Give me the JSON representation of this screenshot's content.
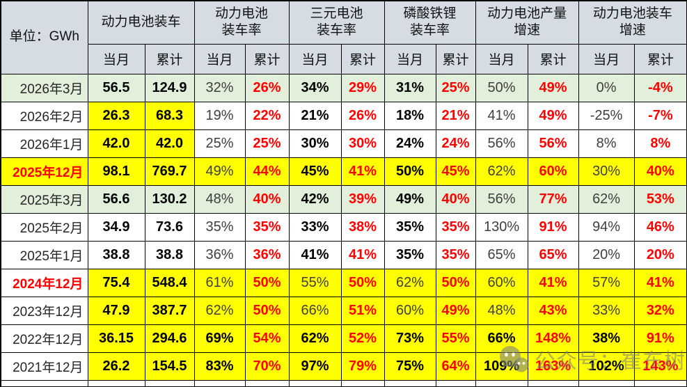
{
  "colors": {
    "highlight_yellow": "#FFFF00",
    "row_green": "#E2EFDA",
    "header_blue": "#D6DCE4",
    "cumulative_red": "#FF0000"
  },
  "watermark": {
    "text": "公众号：崔东树",
    "icon": "wechat-icon"
  },
  "chart_data": {
    "type": "table",
    "unit_label": "单位：GWh",
    "groups": [
      {
        "label": "动力电池装车"
      },
      {
        "label": "动力电池\n装车率"
      },
      {
        "label": "三元电池\n装车率"
      },
      {
        "label": "磷酸铁锂\n装车率"
      },
      {
        "label": "动力电池产量\n增速"
      },
      {
        "label": "动力电池装车\n增速"
      }
    ],
    "sub": {
      "current": "当月",
      "cumulative": "累计"
    },
    "rows": [
      {
        "label": "2026年3月",
        "label_bg": "green",
        "label_red": false,
        "bg": "green",
        "cells": [
          [
            "56.5",
            "b"
          ],
          [
            "124.9",
            "b"
          ],
          [
            "32%",
            "r"
          ],
          [
            "26%",
            "red"
          ],
          [
            "34%",
            "b"
          ],
          [
            "29%",
            "red"
          ],
          [
            "31%",
            "b"
          ],
          [
            "25%",
            "red"
          ],
          [
            "50%",
            "r"
          ],
          [
            "49%",
            "red"
          ],
          [
            "0%",
            "r"
          ],
          [
            "-4%",
            "red"
          ]
        ]
      },
      {
        "label": "2026年2月",
        "label_bg": "white",
        "label_red": false,
        "bg": "white",
        "cells": [
          [
            "26.3",
            "b",
            "y"
          ],
          [
            "68.3",
            "b",
            "y"
          ],
          [
            "19%",
            "r"
          ],
          [
            "22%",
            "red"
          ],
          [
            "21%",
            "b"
          ],
          [
            "26%",
            "red"
          ],
          [
            "18%",
            "b"
          ],
          [
            "21%",
            "red"
          ],
          [
            "41%",
            "r"
          ],
          [
            "49%",
            "red"
          ],
          [
            "-25%",
            "r"
          ],
          [
            "-7%",
            "red"
          ]
        ]
      },
      {
        "label": "2026年1月",
        "label_bg": "white",
        "label_red": false,
        "bg": "white",
        "cells": [
          [
            "42.0",
            "b",
            "y"
          ],
          [
            "42.0",
            "b",
            "y"
          ],
          [
            "25%",
            "r"
          ],
          [
            "25%",
            "red"
          ],
          [
            "30%",
            "b"
          ],
          [
            "30%",
            "red"
          ],
          [
            "24%",
            "b"
          ],
          [
            "24%",
            "red"
          ],
          [
            "56%",
            "r"
          ],
          [
            "56%",
            "red"
          ],
          [
            "8%",
            "r"
          ],
          [
            "8%",
            "red"
          ]
        ]
      },
      {
        "label": "2025年12月",
        "label_bg": "yellow",
        "label_red": true,
        "bg": "yellow",
        "cells": [
          [
            "98.1",
            "b"
          ],
          [
            "769.7",
            "b"
          ],
          [
            "49%",
            "r"
          ],
          [
            "44%",
            "red"
          ],
          [
            "45%",
            "b"
          ],
          [
            "41%",
            "red"
          ],
          [
            "50%",
            "b"
          ],
          [
            "45%",
            "red"
          ],
          [
            "62%",
            "r"
          ],
          [
            "60%",
            "red"
          ],
          [
            "30%",
            "r"
          ],
          [
            "40%",
            "red"
          ]
        ]
      },
      {
        "label": "2025年3月",
        "label_bg": "green",
        "label_red": false,
        "bg": "green",
        "cells": [
          [
            "56.6",
            "b"
          ],
          [
            "130.2",
            "b"
          ],
          [
            "48%",
            "r"
          ],
          [
            "40%",
            "red"
          ],
          [
            "42%",
            "b"
          ],
          [
            "39%",
            "red"
          ],
          [
            "49%",
            "b"
          ],
          [
            "40%",
            "red"
          ],
          [
            "56%",
            "r"
          ],
          [
            "77%",
            "red"
          ],
          [
            "62%",
            "r"
          ],
          [
            "53%",
            "red"
          ]
        ]
      },
      {
        "label": "2025年2月",
        "label_bg": "white",
        "label_red": false,
        "bg": "white",
        "cells": [
          [
            "34.9",
            "b"
          ],
          [
            "73.6",
            "b"
          ],
          [
            "35%",
            "r"
          ],
          [
            "35%",
            "red"
          ],
          [
            "33%",
            "b"
          ],
          [
            "38%",
            "red"
          ],
          [
            "35%",
            "b"
          ],
          [
            "35%",
            "red"
          ],
          [
            "130%",
            "r"
          ],
          [
            "91%",
            "red"
          ],
          [
            "94%",
            "r"
          ],
          [
            "46%",
            "red"
          ]
        ]
      },
      {
        "label": "2025年1月",
        "label_bg": "white",
        "label_red": false,
        "bg": "white",
        "cells": [
          [
            "38.8",
            "b"
          ],
          [
            "38.8",
            "b"
          ],
          [
            "36%",
            "r"
          ],
          [
            "36%",
            "red"
          ],
          [
            "41%",
            "b"
          ],
          [
            "41%",
            "red"
          ],
          [
            "35%",
            "b"
          ],
          [
            "35%",
            "red"
          ],
          [
            "65%",
            "r"
          ],
          [
            "65%",
            "red"
          ],
          [
            "20%",
            "r"
          ],
          [
            "20%",
            "red"
          ]
        ]
      },
      {
        "label": "2024年12月",
        "label_bg": "white",
        "label_red": true,
        "bg": "yellow",
        "cells": [
          [
            "75.4",
            "b"
          ],
          [
            "548.4",
            "b"
          ],
          [
            "61%",
            "r"
          ],
          [
            "50%",
            "red"
          ],
          [
            "55%",
            "r"
          ],
          [
            "50%",
            "red"
          ],
          [
            "62%",
            "r"
          ],
          [
            "50%",
            "red"
          ],
          [
            "60%",
            "r"
          ],
          [
            "41%",
            "red"
          ],
          [
            "57%",
            "r"
          ],
          [
            "41%",
            "red"
          ]
        ]
      },
      {
        "label": "2023年12月",
        "label_bg": "white",
        "label_red": false,
        "bg": "yellow",
        "cells": [
          [
            "47.9",
            "b"
          ],
          [
            "387.7",
            "b"
          ],
          [
            "62%",
            "r"
          ],
          [
            "50%",
            "red"
          ],
          [
            "66%",
            "r"
          ],
          [
            "51%",
            "red"
          ],
          [
            "60%",
            "r"
          ],
          [
            "49%",
            "red"
          ],
          [
            "48%",
            "r"
          ],
          [
            "43%",
            "red"
          ],
          [
            "33%",
            "r"
          ],
          [
            "32%",
            "red"
          ]
        ]
      },
      {
        "label": "2022年12月",
        "label_bg": "white",
        "label_red": false,
        "bg": "yellow",
        "cells": [
          [
            "36.15",
            "b"
          ],
          [
            "294.6",
            "b"
          ],
          [
            "69%",
            "b"
          ],
          [
            "54%",
            "red"
          ],
          [
            "62%",
            "b"
          ],
          [
            "52%",
            "red"
          ],
          [
            "73%",
            "b"
          ],
          [
            "55%",
            "red"
          ],
          [
            "66%",
            "b"
          ],
          [
            "148%",
            "red"
          ],
          [
            "38%",
            "b"
          ],
          [
            "91%",
            "red"
          ]
        ]
      },
      {
        "label": "2021年12月",
        "label_bg": "white",
        "label_red": false,
        "bg": "yellow",
        "cells": [
          [
            "26.2",
            "b"
          ],
          [
            "154.5",
            "b"
          ],
          [
            "83%",
            "b"
          ],
          [
            "70%",
            "red"
          ],
          [
            "97%",
            "b"
          ],
          [
            "79%",
            "red"
          ],
          [
            "75%",
            "b"
          ],
          [
            "64%",
            "red"
          ],
          [
            "109%",
            "b"
          ],
          [
            "163%",
            "red"
          ],
          [
            "102%",
            "b"
          ],
          [
            "143%",
            "red"
          ]
        ]
      }
    ]
  }
}
